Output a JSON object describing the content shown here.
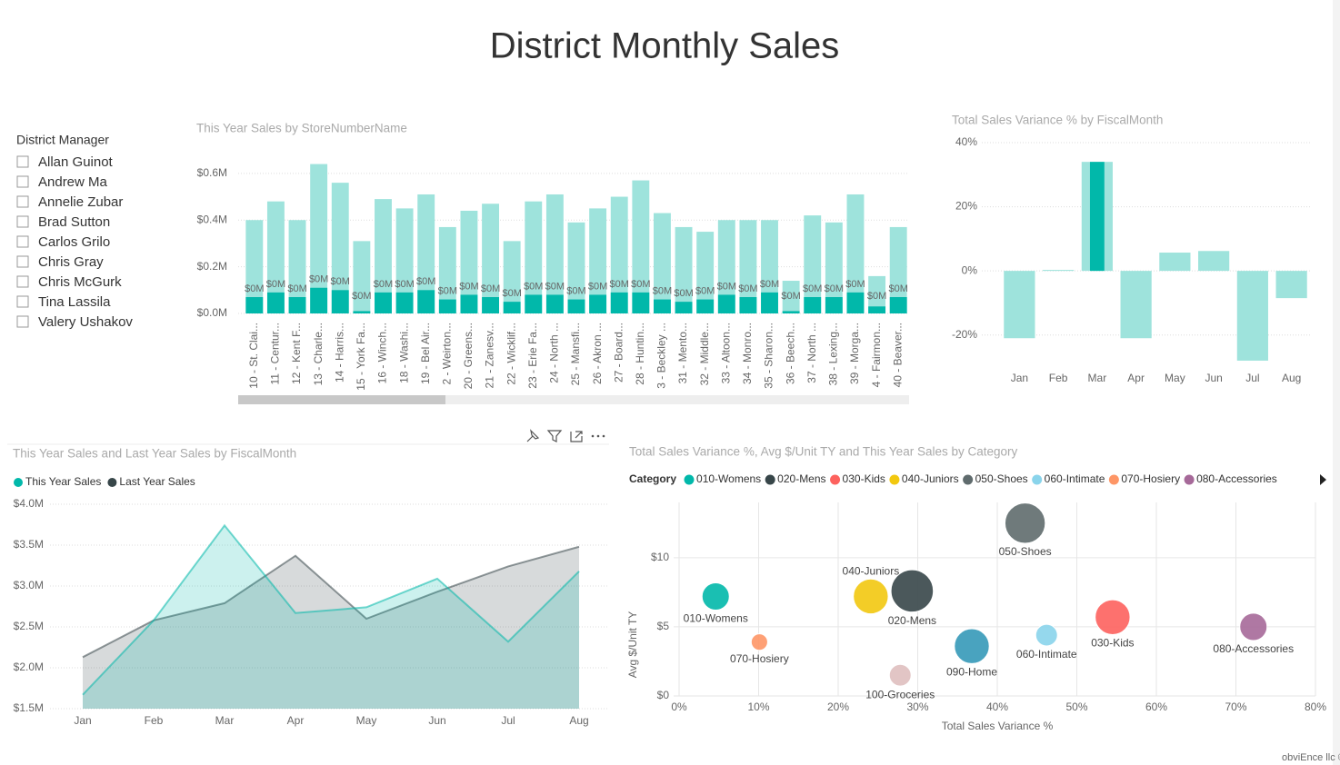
{
  "title": "District Monthly Sales",
  "slicer": {
    "title": "District Manager",
    "items": [
      "Allan Guinot",
      "Andrew Ma",
      "Annelie Zubar",
      "Brad Sutton",
      "Carlos Grilo",
      "Chris Gray",
      "Chris McGurk",
      "Tina Lassila",
      "Valery Ushakov"
    ]
  },
  "footer": "obviEnce llc ©",
  "chart_data": [
    {
      "type": "bar",
      "title": "This Year Sales by StoreNumberName",
      "categories": [
        "10 - St. Clai...",
        "11 - Centur...",
        "12 - Kent F...",
        "13 - Charle...",
        "14 - Harris...",
        "15 - York Fa...",
        "16 - Winch...",
        "18 - Washi...",
        "19 - Bel Air...",
        "2 - Weirton...",
        "20 - Greens...",
        "21 - Zanesv...",
        "22 - Wicklif...",
        "23 - Erie Fa...",
        "24 - North ...",
        "25 - Mansfi...",
        "26 - Akron ...",
        "27 - Board...",
        "28 - Huntin...",
        "3 - Beckley ...",
        "31 - Mento...",
        "32 - Middle...",
        "33 - Altoon...",
        "34 - Monro...",
        "35 - Sharon...",
        "36 - Beech...",
        "37 - North ...",
        "38 - Lexing...",
        "39 - Morga...",
        "4 - Fairmon...",
        "40 - Beaver..."
      ],
      "series": [
        {
          "color": "#9ee3dc",
          "values": [
            0.4,
            0.48,
            0.4,
            0.64,
            0.56,
            0.31,
            0.49,
            0.45,
            0.51,
            0.37,
            0.44,
            0.47,
            0.31,
            0.48,
            0.51,
            0.39,
            0.45,
            0.5,
            0.57,
            0.43,
            0.37,
            0.35,
            0.4,
            0.4,
            0.4,
            0.14,
            0.42,
            0.39,
            0.51,
            0.16,
            0.37
          ]
        },
        {
          "color": "#01b8aa",
          "values": [
            0.07,
            0.09,
            0.07,
            0.11,
            0.1,
            0.01,
            0.09,
            0.09,
            0.1,
            0.06,
            0.08,
            0.07,
            0.05,
            0.08,
            0.08,
            0.06,
            0.08,
            0.09,
            0.09,
            0.06,
            0.05,
            0.06,
            0.08,
            0.07,
            0.09,
            0.01,
            0.07,
            0.07,
            0.09,
            0.03,
            0.07
          ],
          "value_labels": [
            "$0M",
            "$0M",
            "$0M",
            "$0M",
            "$0M",
            "$0M",
            "$0M",
            "$0M",
            "$0M",
            "$0M",
            "$0M",
            "$0M",
            "$0M",
            "$0M",
            "$0M",
            "$0M",
            "$0M",
            "$0M",
            "$0M",
            "$0M",
            "$0M",
            "$0M",
            "$0M",
            "$0M",
            "$0M",
            "$0M",
            "$0M",
            "$0M",
            "$0M",
            "$0M",
            "$0M"
          ]
        }
      ],
      "ylim": [
        0,
        0.65
      ],
      "yticks": [
        {
          "value": 0,
          "label": "$0.0M"
        },
        {
          "value": 0.2,
          "label": "$0.2M"
        },
        {
          "value": 0.4,
          "label": "$0.4M"
        },
        {
          "value": 0.6,
          "label": "$0.6M"
        }
      ],
      "grid": true
    },
    {
      "type": "bar",
      "title": "Total Sales Variance % by FiscalMonth",
      "categories": [
        "Jan",
        "Feb",
        "Mar",
        "Apr",
        "May",
        "Jun",
        "Jul",
        "Aug"
      ],
      "series": [
        {
          "color": "#9ee3dc",
          "values": [
            -21,
            0.3,
            34,
            -21,
            5.7,
            6.2,
            -28,
            -8.5
          ]
        },
        {
          "color": "#01b8aa",
          "values": [
            null,
            null,
            34,
            null,
            null,
            null,
            null,
            null
          ]
        }
      ],
      "ylim": [
        -30,
        40
      ],
      "yticks": [
        {
          "value": -20,
          "label": "-20%"
        },
        {
          "value": 0,
          "label": "0%"
        },
        {
          "value": 20,
          "label": "20%"
        },
        {
          "value": 40,
          "label": "40%"
        }
      ],
      "grid": true
    },
    {
      "type": "area",
      "title": "This Year Sales and Last Year Sales by FiscalMonth",
      "categories": [
        "Jan",
        "Feb",
        "Mar",
        "Apr",
        "May",
        "Jun",
        "Jul",
        "Aug"
      ],
      "series": [
        {
          "name": "This Year Sales",
          "color": "#01b8aa",
          "values": [
            1.67,
            2.58,
            3.74,
            2.67,
            2.74,
            3.09,
            2.32,
            3.18
          ]
        },
        {
          "name": "Last Year Sales",
          "color": "#374649",
          "values": [
            2.13,
            2.58,
            2.79,
            3.37,
            2.6,
            2.93,
            3.24,
            3.48
          ]
        }
      ],
      "ylim": [
        1.5,
        4.0
      ],
      "yticks": [
        {
          "value": 1.5,
          "label": "$1.5M"
        },
        {
          "value": 2.0,
          "label": "$2.0M"
        },
        {
          "value": 2.5,
          "label": "$2.5M"
        },
        {
          "value": 3.0,
          "label": "$3.0M"
        },
        {
          "value": 3.5,
          "label": "$3.5M"
        },
        {
          "value": 4.0,
          "label": "$4.0M"
        }
      ],
      "grid": true,
      "legend": "top-left"
    },
    {
      "type": "scatter",
      "title": "Total Sales Variance %, Avg $/Unit TY and This Year Sales by Category",
      "legend_title": "Category",
      "xlabel": "Total Sales Variance %",
      "ylabel": "Avg $/Unit TY",
      "series": [
        {
          "name": "010-Womens",
          "color": "#01b8aa",
          "x": [
            4.6
          ],
          "values": [
            7.2
          ],
          "sizes": [
            22
          ]
        },
        {
          "name": "020-Mens",
          "color": "#374649",
          "x": [
            29.3
          ],
          "values": [
            7.6
          ],
          "sizes": [
            53
          ]
        },
        {
          "name": "030-Kids",
          "color": "#fd625e",
          "x": [
            54.5
          ],
          "values": [
            5.7
          ],
          "sizes": [
            36
          ]
        },
        {
          "name": "040-Juniors",
          "color": "#f2c80f",
          "x": [
            24.1
          ],
          "values": [
            7.2
          ],
          "sizes": [
            36
          ]
        },
        {
          "name": "050-Shoes",
          "color": "#5f6b6d",
          "x": [
            43.5
          ],
          "values": [
            12.5
          ],
          "sizes": [
            48
          ]
        },
        {
          "name": "060-Intimate",
          "color": "#8ad4eb",
          "x": [
            46.2
          ],
          "values": [
            4.4
          ],
          "sizes": [
            14
          ]
        },
        {
          "name": "070-Hosiery",
          "color": "#fe9666",
          "x": [
            10.1
          ],
          "values": [
            3.9
          ],
          "sizes": [
            8
          ]
        },
        {
          "name": "080-Accessories",
          "color": "#a66999",
          "x": [
            72.2
          ],
          "values": [
            5.0
          ],
          "sizes": [
            22
          ]
        },
        {
          "name": "090-Home",
          "color": "#3599b8",
          "x": [
            36.8
          ],
          "values": [
            3.6
          ],
          "sizes": [
            36
          ]
        },
        {
          "name": "100-Groceries",
          "color": "#dfbfbf",
          "x": [
            27.8
          ],
          "values": [
            1.5
          ],
          "sizes": [
            14
          ]
        }
      ],
      "xlim": [
        0,
        80
      ],
      "xticks": [
        {
          "value": 0,
          "label": "0%"
        },
        {
          "value": 10,
          "label": "10%"
        },
        {
          "value": 20,
          "label": "20%"
        },
        {
          "value": 30,
          "label": "30%"
        },
        {
          "value": 40,
          "label": "40%"
        },
        {
          "value": 50,
          "label": "50%"
        },
        {
          "value": 60,
          "label": "60%"
        },
        {
          "value": 70,
          "label": "70%"
        },
        {
          "value": 80,
          "label": "80%"
        }
      ],
      "ylim": [
        0,
        14
      ],
      "yticks": [
        {
          "value": 0,
          "label": "$0"
        },
        {
          "value": 5,
          "label": "$5"
        },
        {
          "value": 10,
          "label": "$10"
        }
      ],
      "grid": true
    }
  ]
}
